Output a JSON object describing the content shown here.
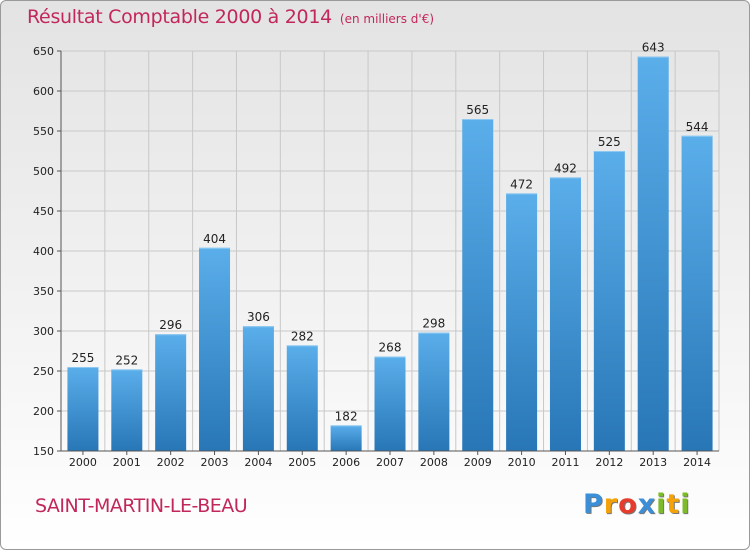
{
  "header": {
    "title": "Résultat Comptable 2000 à 2014",
    "unit": "(en milliers d'€)"
  },
  "footer": {
    "commune": "SAINT-MARTIN-LE-BEAU",
    "logo_text": "Proxiti",
    "logo_letters": [
      {
        "ch": "P",
        "color": "#3a8fd8"
      },
      {
        "ch": "r",
        "color": "#f5a20a"
      },
      {
        "ch": "o",
        "color": "#e63c2b"
      },
      {
        "ch": "x",
        "color": "#3a8fd8"
      },
      {
        "ch": "i",
        "color": "#7dbb2b"
      },
      {
        "ch": "t",
        "color": "#f5a20a"
      },
      {
        "ch": "i",
        "color": "#7dbb2b"
      }
    ]
  },
  "colors": {
    "title": "#c2275a",
    "bar_top": "#5aaeea",
    "bar_bottom": "#2876b6",
    "grid": "#c8c8c8"
  },
  "chart_data": {
    "type": "bar",
    "title": "Résultat Comptable 2000 à 2014",
    "subtitle": "(en milliers d'€)",
    "xlabel": "",
    "ylabel": "",
    "categories": [
      "2000",
      "2001",
      "2002",
      "2003",
      "2004",
      "2005",
      "2006",
      "2007",
      "2008",
      "2009",
      "2010",
      "2011",
      "2012",
      "2013",
      "2014"
    ],
    "values": [
      255,
      252,
      296,
      404,
      306,
      282,
      182,
      268,
      298,
      565,
      472,
      492,
      525,
      643,
      544
    ],
    "ylim": [
      150,
      650
    ],
    "yticks": [
      150,
      200,
      250,
      300,
      350,
      400,
      450,
      500,
      550,
      600,
      650
    ],
    "grid": true,
    "data_labels": true
  }
}
